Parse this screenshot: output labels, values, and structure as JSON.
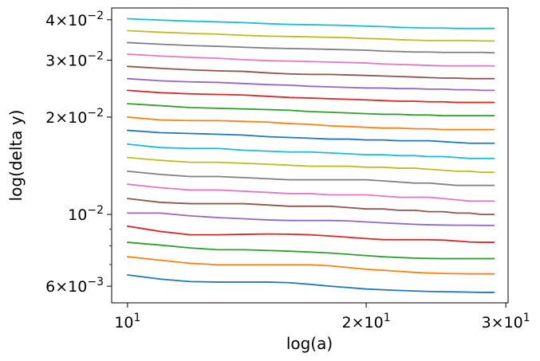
{
  "chart_data": {
    "type": "line",
    "xlabel": "log(a)",
    "ylabel": "log(delta y)",
    "xscale": "log",
    "yscale": "log",
    "xlim": [
      9.55,
      30.2
    ],
    "ylim": [
      0.00533,
      0.0435
    ],
    "grid": false,
    "x": [
      10,
      11,
      12,
      13,
      14,
      15,
      16,
      17,
      18,
      19,
      20,
      21,
      22,
      23,
      24,
      25,
      26,
      27,
      28,
      29
    ],
    "x_ticks": [
      {
        "value": 10,
        "mantissa": "",
        "exp": "1"
      },
      {
        "value": 20,
        "mantissa": "2",
        "exp": "1"
      },
      {
        "value": 30,
        "mantissa": "3",
        "exp": "1"
      }
    ],
    "y_ticks": [
      {
        "value": 0.006,
        "mantissa": "6",
        "exp": "−3"
      },
      {
        "value": 0.01,
        "mantissa": "",
        "exp": "−2"
      },
      {
        "value": 0.02,
        "mantissa": "2",
        "exp": "−2"
      },
      {
        "value": 0.03,
        "mantissa": "3",
        "exp": "−2"
      },
      {
        "value": 0.04,
        "mantissa": "4",
        "exp": "−2"
      }
    ],
    "y_minor_ticks": [
      0.007,
      0.008,
      0.009
    ],
    "series": [
      {
        "color": "#1f77b4",
        "values": [
          0.0065,
          0.00631,
          0.0062,
          0.00618,
          0.00618,
          0.00618,
          0.00615,
          0.00608,
          0.006,
          0.00594,
          0.00588,
          0.00585,
          0.00582,
          0.0058,
          0.00578,
          0.00577,
          0.00576,
          0.00575,
          0.00574,
          0.00574
        ]
      },
      {
        "color": "#ff7f0e",
        "values": [
          0.0074,
          0.00722,
          0.00706,
          0.00699,
          0.00699,
          0.00699,
          0.00699,
          0.00699,
          0.00694,
          0.00685,
          0.00677,
          0.00672,
          0.00667,
          0.00662,
          0.00659,
          0.00657,
          0.00656,
          0.00655,
          0.00655,
          0.00655
        ]
      },
      {
        "color": "#2ca02c",
        "values": [
          0.0082,
          0.00804,
          0.00788,
          0.00778,
          0.00778,
          0.00774,
          0.0077,
          0.00765,
          0.0076,
          0.00753,
          0.00746,
          0.0074,
          0.00736,
          0.00733,
          0.00731,
          0.0073,
          0.0073,
          0.0073,
          0.0073,
          0.0073
        ]
      },
      {
        "color": "#d62728",
        "values": [
          0.0092,
          0.00886,
          0.00865,
          0.00865,
          0.00868,
          0.0087,
          0.00869,
          0.00865,
          0.00858,
          0.0085,
          0.00842,
          0.00836,
          0.00835,
          0.00835,
          0.00835,
          0.00833,
          0.00828,
          0.00822,
          0.0082,
          0.0082
        ]
      },
      {
        "color": "#9467bd",
        "values": [
          0.0101,
          0.0101,
          0.0099,
          0.00978,
          0.0097,
          0.00962,
          0.00958,
          0.00958,
          0.00958,
          0.00955,
          0.00948,
          0.00942,
          0.00937,
          0.00932,
          0.00929,
          0.00927,
          0.00926,
          0.00926,
          0.00925,
          0.00925
        ]
      },
      {
        "color": "#8c564b",
        "values": [
          0.0112,
          0.0109,
          0.0108,
          0.0108,
          0.0108,
          0.0107,
          0.0106,
          0.0106,
          0.0106,
          0.0105,
          0.0104,
          0.0104,
          0.0103,
          0.0103,
          0.0102,
          0.0102,
          0.0101,
          0.0101,
          0.01,
          0.01
        ]
      },
      {
        "color": "#e377c2",
        "values": [
          0.0124,
          0.0121,
          0.0119,
          0.0119,
          0.0118,
          0.0117,
          0.0116,
          0.0116,
          0.0115,
          0.0115,
          0.0115,
          0.0114,
          0.0113,
          0.0113,
          0.0113,
          0.0112,
          0.0111,
          0.011,
          0.011,
          0.011
        ]
      },
      {
        "color": "#7f7f7f",
        "values": [
          0.0136,
          0.0133,
          0.0131,
          0.0131,
          0.013,
          0.0129,
          0.0128,
          0.0128,
          0.0128,
          0.0128,
          0.0128,
          0.0127,
          0.0126,
          0.0125,
          0.0125,
          0.0124,
          0.0123,
          0.0123,
          0.0123,
          0.0123
        ]
      },
      {
        "color": "#bcbd22",
        "values": [
          0.015,
          0.0147,
          0.0145,
          0.0145,
          0.0144,
          0.0143,
          0.0142,
          0.0141,
          0.0141,
          0.0141,
          0.014,
          0.014,
          0.0139,
          0.0139,
          0.0138,
          0.0137,
          0.0136,
          0.0136,
          0.0135,
          0.0135
        ]
      },
      {
        "color": "#17becf",
        "values": [
          0.0165,
          0.0161,
          0.016,
          0.016,
          0.0158,
          0.0157,
          0.0156,
          0.0156,
          0.0155,
          0.0154,
          0.0153,
          0.0153,
          0.0152,
          0.0152,
          0.0151,
          0.0151,
          0.015,
          0.0149,
          0.0149,
          0.0149
        ]
      },
      {
        "color": "#1f77b4",
        "values": [
          0.0182,
          0.0179,
          0.0178,
          0.0177,
          0.0176,
          0.0174,
          0.0173,
          0.0172,
          0.0171,
          0.0171,
          0.017,
          0.017,
          0.0169,
          0.0169,
          0.0169,
          0.0168,
          0.0167,
          0.0166,
          0.0166,
          0.0166
        ]
      },
      {
        "color": "#ff7f0e",
        "values": [
          0.02,
          0.0196,
          0.0195,
          0.0195,
          0.0194,
          0.0193,
          0.0191,
          0.019,
          0.0188,
          0.0187,
          0.0186,
          0.0185,
          0.0185,
          0.0184,
          0.0184,
          0.0183,
          0.0183,
          0.0183,
          0.0183,
          0.0183
        ]
      },
      {
        "color": "#2ca02c",
        "values": [
          0.022,
          0.0217,
          0.0214,
          0.0213,
          0.0212,
          0.0211,
          0.021,
          0.0208,
          0.0207,
          0.0206,
          0.0205,
          0.0204,
          0.0204,
          0.0203,
          0.0203,
          0.0202,
          0.0202,
          0.0202,
          0.0202,
          0.0202
        ]
      },
      {
        "color": "#d62728",
        "values": [
          0.0242,
          0.0238,
          0.0236,
          0.0235,
          0.0234,
          0.0232,
          0.023,
          0.0229,
          0.0228,
          0.0227,
          0.0226,
          0.0225,
          0.0224,
          0.0224,
          0.0223,
          0.0223,
          0.0222,
          0.0222,
          0.0222,
          0.0222
        ]
      },
      {
        "color": "#9467bd",
        "values": [
          0.0263,
          0.0259,
          0.0257,
          0.0256,
          0.0254,
          0.0252,
          0.0251,
          0.0249,
          0.0248,
          0.0247,
          0.0246,
          0.0246,
          0.0245,
          0.0245,
          0.0244,
          0.0244,
          0.0243,
          0.0243,
          0.0242,
          0.0242
        ]
      },
      {
        "color": "#8c564b",
        "values": [
          0.0287,
          0.0283,
          0.028,
          0.0278,
          0.0277,
          0.0274,
          0.0272,
          0.0271,
          0.0271,
          0.027,
          0.0269,
          0.0268,
          0.0267,
          0.0266,
          0.0265,
          0.0264,
          0.0264,
          0.0263,
          0.0263,
          0.0263
        ]
      },
      {
        "color": "#e377c2",
        "values": [
          0.0313,
          0.0309,
          0.0306,
          0.0304,
          0.0301,
          0.0299,
          0.0298,
          0.0297,
          0.0296,
          0.0295,
          0.0294,
          0.0292,
          0.0291,
          0.029,
          0.0289,
          0.0288,
          0.0288,
          0.0288,
          0.0288,
          0.0288
        ]
      },
      {
        "color": "#7f7f7f",
        "values": [
          0.034,
          0.0336,
          0.0333,
          0.0331,
          0.0329,
          0.0327,
          0.0326,
          0.0325,
          0.0324,
          0.0323,
          0.0322,
          0.032,
          0.0319,
          0.0318,
          0.0318,
          0.0317,
          0.0317,
          0.0317,
          0.0317,
          0.0316
        ]
      },
      {
        "color": "#bcbd22",
        "values": [
          0.037,
          0.0366,
          0.0363,
          0.0361,
          0.0358,
          0.0356,
          0.0355,
          0.0354,
          0.0353,
          0.0352,
          0.035,
          0.0349,
          0.0347,
          0.0346,
          0.0345,
          0.0345,
          0.0345,
          0.0345,
          0.0344,
          0.0344
        ]
      },
      {
        "color": "#17becf",
        "values": [
          0.0403,
          0.0399,
          0.0396,
          0.0394,
          0.0392,
          0.0389,
          0.0387,
          0.0386,
          0.0385,
          0.0384,
          0.0382,
          0.0381,
          0.0379,
          0.0378,
          0.0377,
          0.0377,
          0.0376,
          0.0376,
          0.0376,
          0.0376
        ]
      }
    ]
  }
}
